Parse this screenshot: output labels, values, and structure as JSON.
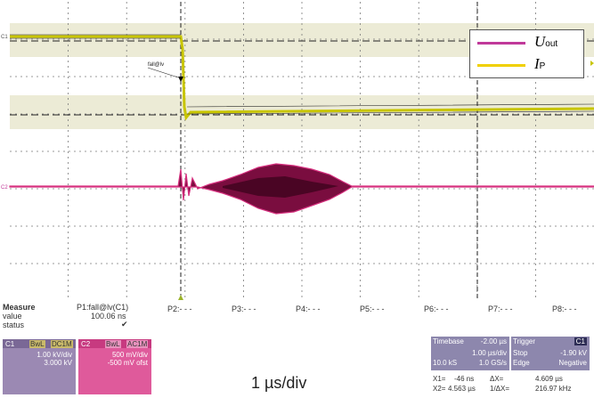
{
  "screen": {
    "tick_labels": [
      "P2:- - -",
      "P3:- - -",
      "P4:- - -",
      "P5:- - -",
      "P6:- - -",
      "P7:- - -",
      "P8:- - -"
    ],
    "channel_markers": {
      "c1": "C1",
      "c2": "C2"
    },
    "fall_marker_label": "fall@lv"
  },
  "legend": {
    "items": [
      {
        "symbol": "U",
        "subscript": "out",
        "color": "#c0399a"
      },
      {
        "symbol": "I",
        "subscript": "P",
        "color": "#f0d000"
      }
    ]
  },
  "measure": {
    "title": "Measure",
    "row_value": "value",
    "row_status": "status",
    "p1_name": "P1:fall@lv(C1)",
    "p1_value": "100.06 ns",
    "p1_status": "✔"
  },
  "channel1": {
    "name": "C1",
    "tag1": "BwL",
    "tag2": "DC1M",
    "scale": "1.00 kV/div",
    "offset": "3.000 kV",
    "color": "#7f6a9e"
  },
  "channel2": {
    "name": "C2",
    "tag1": "BwL",
    "tag2": "AC1M",
    "scale": "500 mV/div",
    "offset": "-500 mV ofst",
    "color": "#d6307f"
  },
  "timebase": {
    "title": "Timebase",
    "delay": "-2.00 µs",
    "per_div": "1.00 µs/div",
    "samples": "10.0 kS",
    "rate": "1.0 GS/s"
  },
  "trigger": {
    "title": "Trigger",
    "badge": "C1",
    "mode": "Stop",
    "level": "-1.90 kV",
    "type": "Edge",
    "slope": "Negative"
  },
  "cursors": {
    "x1_label": "X1=",
    "x1_value": "-46 ns",
    "dx_label": "ΔX=",
    "dx_value": "4.609 µs",
    "x2_label": "X2=",
    "x2_value": "4.563 µs",
    "inv_label": "1/ΔX=",
    "inv_value": "216.97 kHz"
  },
  "caption": "1 µs/div"
}
